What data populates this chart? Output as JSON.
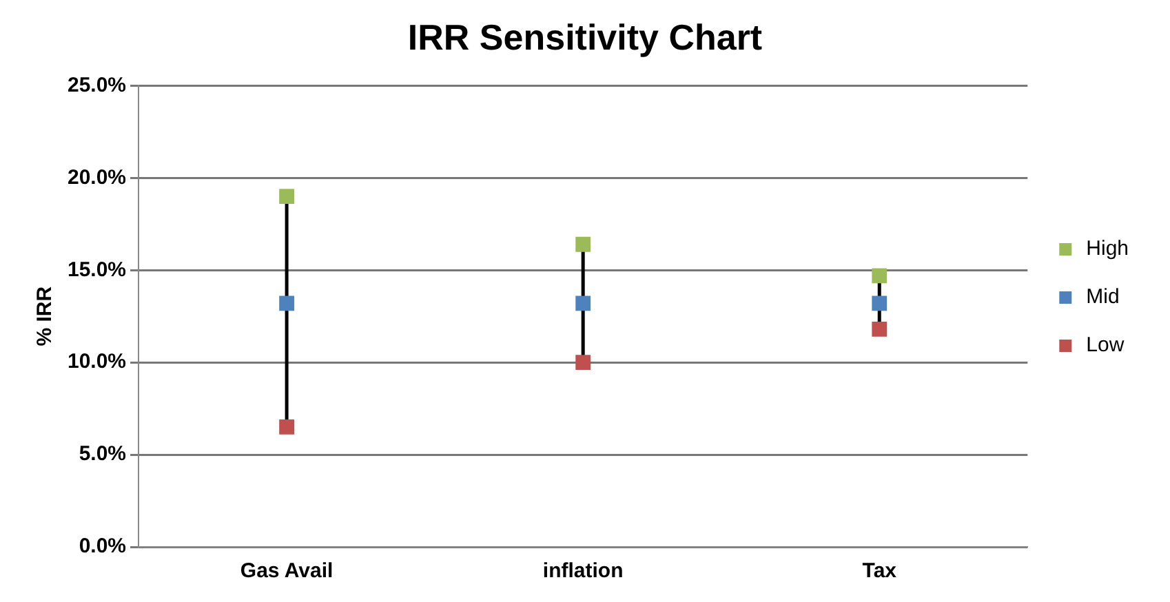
{
  "chart_data": {
    "type": "scatter",
    "title": "IRR Sensitivity Chart",
    "ylabel": "% IRR",
    "categories": [
      "Gas Avail",
      "inflation",
      "Tax"
    ],
    "series": [
      {
        "name": "High",
        "color": "#9bbb59",
        "values": [
          19.0,
          16.4,
          14.7
        ]
      },
      {
        "name": "Mid",
        "color": "#4f81bd",
        "values": [
          13.2,
          13.2,
          13.2
        ]
      },
      {
        "name": "Low",
        "color": "#c0504d",
        "values": [
          6.5,
          10.0,
          11.8
        ]
      }
    ],
    "ylim": [
      0,
      25
    ],
    "yticks": [
      {
        "value": 0,
        "label": "0.0%"
      },
      {
        "value": 5,
        "label": "5.0%"
      },
      {
        "value": 10,
        "label": "10.0%"
      },
      {
        "value": 15,
        "label": "15.0%"
      },
      {
        "value": 20,
        "label": "20.0%"
      },
      {
        "value": 25,
        "label": "25.0%"
      }
    ],
    "grid": "y",
    "legend": "right",
    "marker": "square"
  }
}
